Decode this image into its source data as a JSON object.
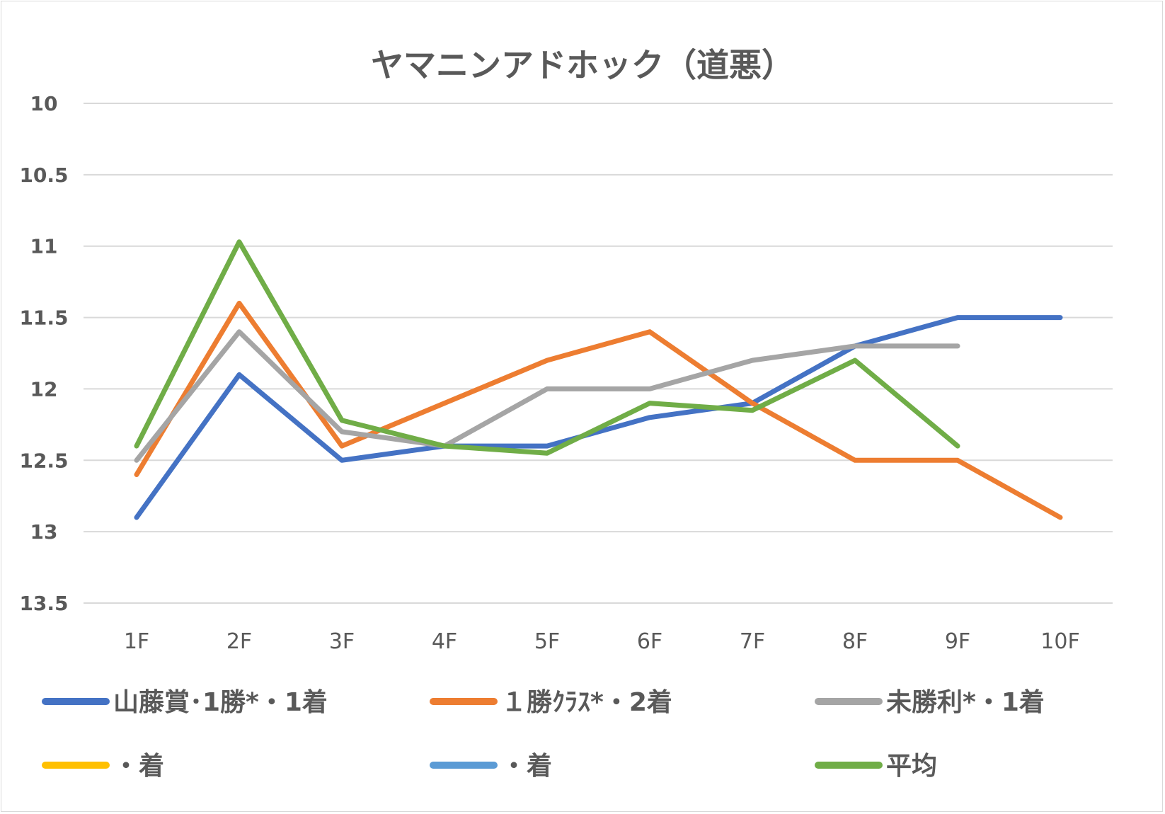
{
  "chart_data": {
    "type": "line",
    "title": "ヤマニンアドホック（道悪）",
    "xlabel": "",
    "ylabel": "",
    "categories": [
      "1F",
      "2F",
      "3F",
      "4F",
      "5F",
      "6F",
      "7F",
      "8F",
      "9F",
      "10F"
    ],
    "y_axis": {
      "reversed": true,
      "ylim": [
        10,
        13.5
      ],
      "ticks": [
        "10",
        "10.5",
        "11",
        "11.5",
        "12",
        "12.5",
        "13",
        "13.5"
      ],
      "tick_values": [
        10,
        10.5,
        11,
        11.5,
        12,
        12.5,
        13,
        13.5
      ]
    },
    "grid": true,
    "legend_position": "bottom",
    "series": [
      {
        "name": "山藤賞･1勝*・1着",
        "color": "#4472c4",
        "values": [
          12.9,
          11.9,
          12.5,
          12.4,
          12.4,
          12.2,
          12.1,
          11.7,
          11.5,
          11.5
        ]
      },
      {
        "name": "１勝ｸﾗｽ*・2着",
        "color": "#ed7d31",
        "values": [
          12.6,
          11.4,
          12.4,
          12.1,
          11.8,
          11.6,
          12.1,
          12.5,
          12.5,
          12.9
        ]
      },
      {
        "name": "未勝利*・1着",
        "color": "#a5a5a5",
        "values": [
          12.5,
          11.6,
          12.3,
          12.4,
          12.0,
          12.0,
          11.8,
          11.7,
          11.7,
          null
        ]
      },
      {
        "name": "・着",
        "color": "#ffc000",
        "values": [
          null,
          null,
          null,
          null,
          null,
          null,
          null,
          null,
          null,
          null
        ]
      },
      {
        "name": "・着",
        "color": "#5b9bd5",
        "values": [
          null,
          null,
          null,
          null,
          null,
          null,
          null,
          null,
          null,
          null
        ]
      },
      {
        "name": "平均",
        "color": "#70ad47",
        "values": [
          12.4,
          10.97,
          12.22,
          12.4,
          12.45,
          12.1,
          12.15,
          11.8,
          12.4,
          null
        ]
      }
    ]
  }
}
